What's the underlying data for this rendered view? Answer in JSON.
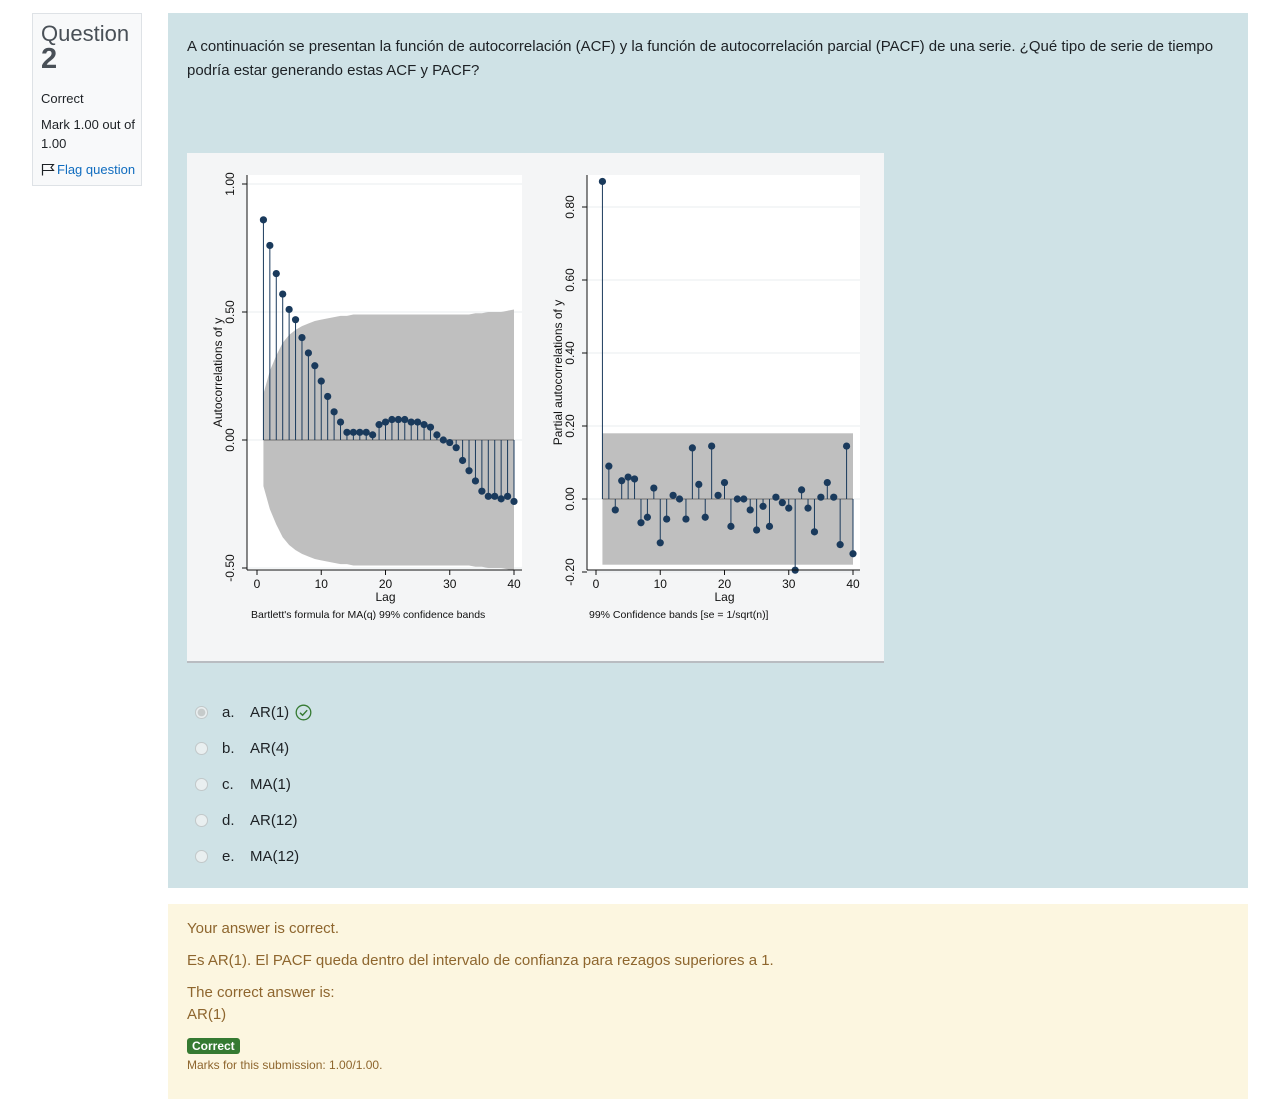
{
  "info": {
    "question_label": "Question",
    "question_number": "2",
    "state": "Correct",
    "grade": "Mark 1.00 out of 1.00",
    "flag_label": "Flag question"
  },
  "question_text": "A continuación se presentan la función de autocorrelación (ACF) y la función de autocorrelación parcial (PACF)  de una serie. ¿Qué tipo de serie de tiempo podría estar generando estas ACF y PACF?",
  "options": [
    {
      "letter": "a.",
      "text": "AR(1)",
      "selected": true,
      "correct": true
    },
    {
      "letter": "b.",
      "text": "AR(4)",
      "selected": false
    },
    {
      "letter": "c.",
      "text": "MA(1)",
      "selected": false
    },
    {
      "letter": "d.",
      "text": "AR(12)",
      "selected": false
    },
    {
      "letter": "e.",
      "text": "MA(12)",
      "selected": false
    }
  ],
  "feedback": {
    "correctness": "Your answer is correct.",
    "general": "Es AR(1). El PACF queda dentro del intervalo de confianza para rezagos superiores a 1.",
    "right_answer_label": "The correct answer is:",
    "right_answer": "AR(1)",
    "badge": "Correct",
    "marks": "Marks for this submission: 1.00/1.00."
  },
  "colors": {
    "marker": "#1a3a5c",
    "band": "#bfbfbf",
    "panel": "#cfe2e6",
    "feedback": "#fcf6e0",
    "badge": "#357a32",
    "link": "#0f6cbf"
  },
  "chart_data": [
    {
      "type": "bar",
      "xlabel": "Lag",
      "ylabel": "Autocorrelations of y",
      "note": "Bartlett's formula for MA(q) 99% confidence bands",
      "xlim": [
        0,
        40
      ],
      "ylim": [
        -0.5,
        1.0
      ],
      "xticks": [
        "0",
        "10",
        "20",
        "30",
        "40"
      ],
      "yticks": [
        "-0.50",
        "0.00",
        "0.50",
        "1.00"
      ],
      "x": [
        1,
        2,
        3,
        4,
        5,
        6,
        7,
        8,
        9,
        10,
        11,
        12,
        13,
        14,
        15,
        16,
        17,
        18,
        19,
        20,
        21,
        22,
        23,
        24,
        25,
        26,
        27,
        28,
        29,
        30,
        31,
        32,
        33,
        34,
        35,
        36,
        37,
        38,
        39,
        40
      ],
      "values": [
        0.86,
        0.76,
        0.65,
        0.57,
        0.51,
        0.47,
        0.4,
        0.34,
        0.29,
        0.23,
        0.17,
        0.11,
        0.07,
        0.03,
        0.03,
        0.03,
        0.03,
        0.02,
        0.06,
        0.07,
        0.08,
        0.08,
        0.08,
        0.07,
        0.07,
        0.06,
        0.05,
        0.02,
        0.0,
        -0.01,
        -0.03,
        -0.08,
        -0.12,
        -0.16,
        -0.2,
        -0.22,
        -0.22,
        -0.23,
        -0.22,
        -0.24
      ],
      "band_upper": [
        0.18,
        0.27,
        0.33,
        0.38,
        0.41,
        0.43,
        0.445,
        0.455,
        0.465,
        0.47,
        0.475,
        0.48,
        0.485,
        0.485,
        0.49,
        0.49,
        0.49,
        0.49,
        0.49,
        0.49,
        0.49,
        0.49,
        0.49,
        0.49,
        0.49,
        0.49,
        0.49,
        0.49,
        0.49,
        0.49,
        0.49,
        0.49,
        0.49,
        0.495,
        0.495,
        0.5,
        0.5,
        0.5,
        0.505,
        0.51
      ],
      "grid": true
    },
    {
      "type": "bar",
      "xlabel": "Lag",
      "ylabel": "Partial autocorrelations of y",
      "note": "99% Confidence bands [se = 1/sqrt(n)]",
      "xlim": [
        0,
        40
      ],
      "ylim": [
        -0.2,
        0.88
      ],
      "xticks": [
        "0",
        "10",
        "20",
        "30",
        "40"
      ],
      "yticks": [
        "-0.20",
        "0.00",
        "0.20",
        "0.40",
        "0.60",
        "0.80"
      ],
      "x": [
        1,
        2,
        3,
        4,
        5,
        6,
        7,
        8,
        9,
        10,
        11,
        12,
        13,
        14,
        15,
        16,
        17,
        18,
        19,
        20,
        21,
        22,
        23,
        24,
        25,
        26,
        27,
        28,
        29,
        30,
        31,
        32,
        33,
        34,
        35,
        36,
        37,
        38,
        39,
        40
      ],
      "values": [
        0.87,
        0.09,
        -0.03,
        0.05,
        0.06,
        0.055,
        -0.065,
        -0.05,
        0.03,
        -0.12,
        -0.055,
        0.01,
        0.0,
        -0.055,
        0.14,
        0.04,
        -0.05,
        0.145,
        0.01,
        0.045,
        -0.075,
        0.0,
        0.0,
        -0.03,
        -0.085,
        -0.02,
        -0.075,
        0.005,
        -0.01,
        -0.025,
        -0.195,
        0.025,
        -0.025,
        -0.09,
        0.005,
        0.045,
        0.005,
        -0.125,
        0.145,
        -0.15
      ],
      "band": 0.18,
      "grid": true
    }
  ]
}
